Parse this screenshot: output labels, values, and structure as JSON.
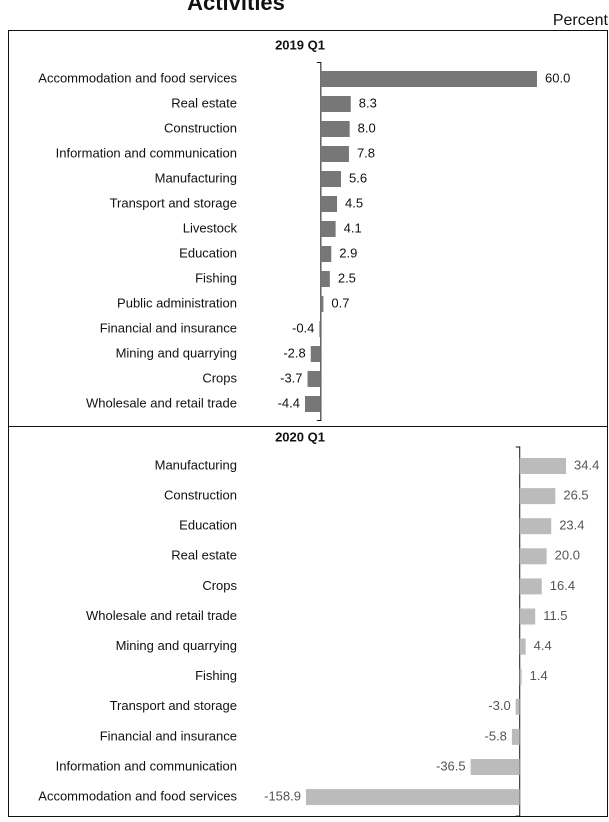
{
  "title": "Activities",
  "unit": "Percent",
  "chart_data": [
    {
      "type": "bar",
      "orientation": "horizontal",
      "title": "2019 Q1",
      "color": "#777777",
      "categories": [
        "Accommodation and food services",
        "Real estate",
        "Construction",
        "Information and communication",
        "Manufacturing",
        "Transport and storage",
        "Livestock",
        "Education",
        "Fishing",
        "Public administration",
        "Financial and insurance",
        "Mining and quarrying",
        "Crops",
        "Wholesale and retail trade"
      ],
      "values": [
        60.0,
        8.3,
        8.0,
        7.8,
        5.6,
        4.5,
        4.1,
        2.9,
        2.5,
        0.7,
        -0.4,
        -2.8,
        -3.7,
        -4.4
      ],
      "value_labels": [
        "60.0",
        "8.3",
        "8.0",
        "7.8",
        "5.6",
        "4.5",
        "4.1",
        "2.9",
        "2.5",
        "0.7",
        "-0.4",
        "-2.8",
        "-3.7",
        "-4.4"
      ]
    },
    {
      "type": "bar",
      "orientation": "horizontal",
      "title": "2020 Q1",
      "color": "#bbbbbb",
      "categories": [
        "Manufacturing",
        "Construction",
        "Education",
        "Real estate",
        "Crops",
        "Wholesale and retail trade",
        "Mining and quarrying",
        "Fishing",
        "Transport and storage",
        "Financial and insurance",
        "Information and communication",
        "Accommodation and food services"
      ],
      "values": [
        34.4,
        26.5,
        23.4,
        20.0,
        16.4,
        11.5,
        4.4,
        1.4,
        -3.0,
        -5.8,
        -36.5,
        -158.9
      ],
      "value_labels": [
        "34.4",
        "26.5",
        "23.4",
        "20.0",
        "16.4",
        "11.5",
        "4.4",
        "1.4",
        "-3.0",
        "-5.8",
        "-36.5",
        "-158.9"
      ]
    }
  ]
}
